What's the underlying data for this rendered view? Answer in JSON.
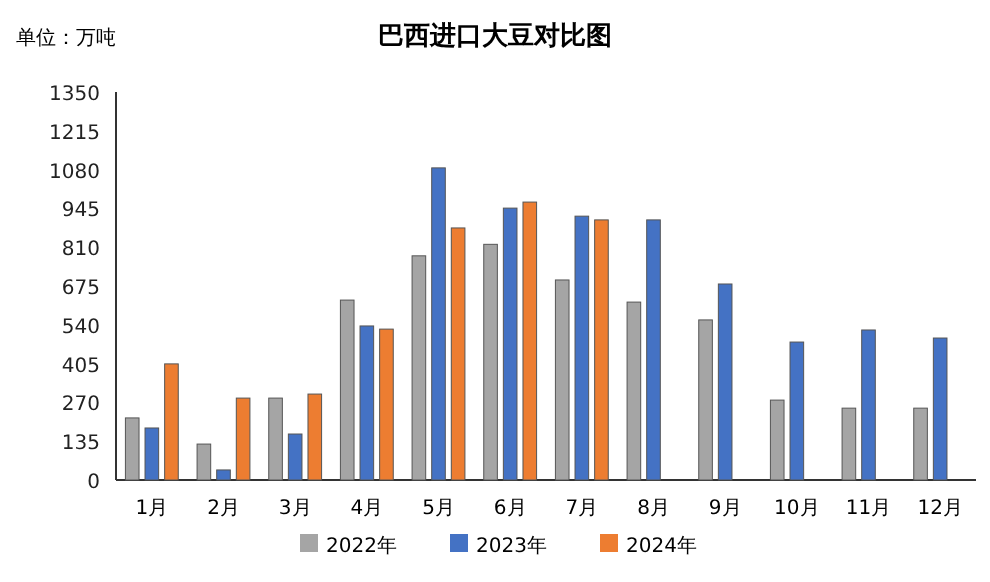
{
  "chart_data": {
    "type": "bar",
    "title": "巴西进口大豆对比图",
    "ylabel": "单位：万吨",
    "categories": [
      "1月",
      "2月",
      "3月",
      "4月",
      "5月",
      "6月",
      "7月",
      "8月",
      "9月",
      "10月",
      "11月",
      "12月"
    ],
    "series": [
      {
        "name": "2022年",
        "color": "#a5a5a5",
        "values": [
          216,
          125,
          285,
          626,
          780,
          820,
          696,
          619,
          557,
          278,
          250,
          250
        ]
      },
      {
        "name": "2023年",
        "color": "#4472c4",
        "values": [
          181,
          35,
          160,
          536,
          1086,
          946,
          918,
          905,
          682,
          480,
          522,
          494
        ]
      },
      {
        "name": "2024年",
        "color": "#ed7d31",
        "values": [
          404,
          285,
          299,
          525,
          877,
          967,
          905,
          null,
          null,
          null,
          null,
          null
        ]
      }
    ],
    "ylim": [
      0,
      1350
    ],
    "yticks": [
      0,
      135,
      270,
      405,
      540,
      675,
      810,
      945,
      1080,
      1215,
      1350
    ],
    "grid": false,
    "legend": "bottom"
  }
}
